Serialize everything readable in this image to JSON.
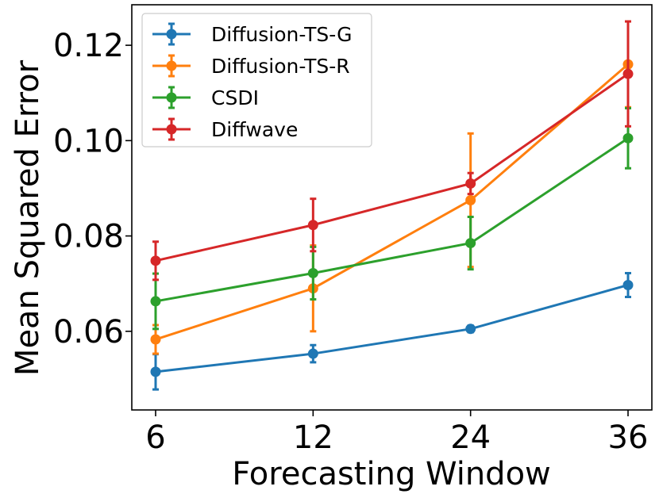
{
  "chart_data": {
    "type": "line",
    "title": "",
    "xlabel": "Forecasting Window",
    "ylabel": "Mean Squared Error",
    "categories": [
      "6",
      "12",
      "24",
      "36"
    ],
    "ylim": [
      0.0435,
      0.1285
    ],
    "yticks": [
      0.06,
      0.08,
      0.1,
      0.12
    ],
    "ytick_labels": [
      "0.06",
      "0.08",
      "0.10",
      "0.12"
    ],
    "grid": false,
    "legend_position": "top-left",
    "series": [
      {
        "name": "Diffusion-TS-G",
        "color": "#1f77b4",
        "values": [
          0.0515,
          0.0553,
          0.0605,
          0.0697
        ],
        "errors": [
          0.0037,
          0.0018,
          0.0007,
          0.0025
        ]
      },
      {
        "name": "Diffusion-TS-R",
        "color": "#ff7f0e",
        "values": [
          0.0583,
          0.069,
          0.0875,
          0.116
        ],
        "errors": [
          0.003,
          0.009,
          0.014,
          0.009
        ]
      },
      {
        "name": "CSDI",
        "color": "#2ca02c",
        "values": [
          0.0663,
          0.0722,
          0.0785,
          0.1005
        ],
        "errors": [
          0.0058,
          0.0055,
          0.0055,
          0.0063
        ]
      },
      {
        "name": "Diffwave",
        "color": "#d62728",
        "values": [
          0.0748,
          0.0823,
          0.091,
          0.114
        ],
        "errors": [
          0.004,
          0.0055,
          0.0022,
          0.011
        ]
      }
    ]
  }
}
